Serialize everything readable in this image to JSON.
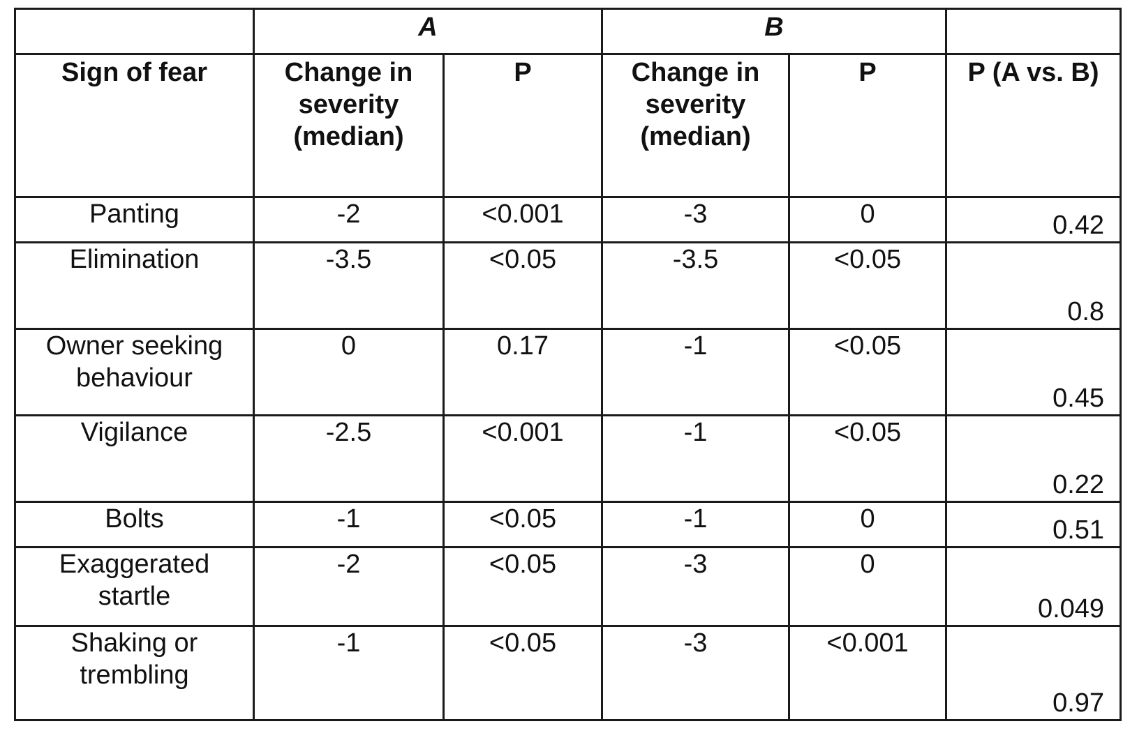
{
  "table": {
    "group_headers": {
      "empty_left": "",
      "group_a": "A",
      "group_b": "B",
      "empty_right": ""
    },
    "columns": [
      "Sign of fear",
      "Change in severity (median)",
      "P",
      "Change in severity (median)",
      "P",
      "P (A vs. B)"
    ],
    "rows": [
      {
        "sign": "Panting",
        "a_change": "-2",
        "a_p": "<0.001",
        "b_change": "-3",
        "b_p": "0",
        "p_ab": "0.42"
      },
      {
        "sign": "Elimination",
        "a_change": "-3.5",
        "a_p": "<0.05",
        "b_change": "-3.5",
        "b_p": "<0.05",
        "p_ab": "0.8"
      },
      {
        "sign": "Owner seeking behaviour",
        "a_change": "0",
        "a_p": "0.17",
        "b_change": "-1",
        "b_p": "<0.05",
        "p_ab": "0.45"
      },
      {
        "sign": "Vigilance",
        "a_change": "-2.5",
        "a_p": "<0.001",
        "b_change": "-1",
        "b_p": "<0.05",
        "p_ab": "0.22"
      },
      {
        "sign": "Bolts",
        "a_change": "-1",
        "a_p": "<0.05",
        "b_change": "-1",
        "b_p": "0",
        "p_ab": "0.51"
      },
      {
        "sign": "Exaggerated startle",
        "a_change": "-2",
        "a_p": "<0.05",
        "b_change": "-3",
        "b_p": "0",
        "p_ab": "0.049"
      },
      {
        "sign": "Shaking or trembling",
        "a_change": "-1",
        "a_p": "<0.05",
        "b_change": "-3",
        "b_p": "<0.001",
        "p_ab": "0.97"
      }
    ]
  }
}
